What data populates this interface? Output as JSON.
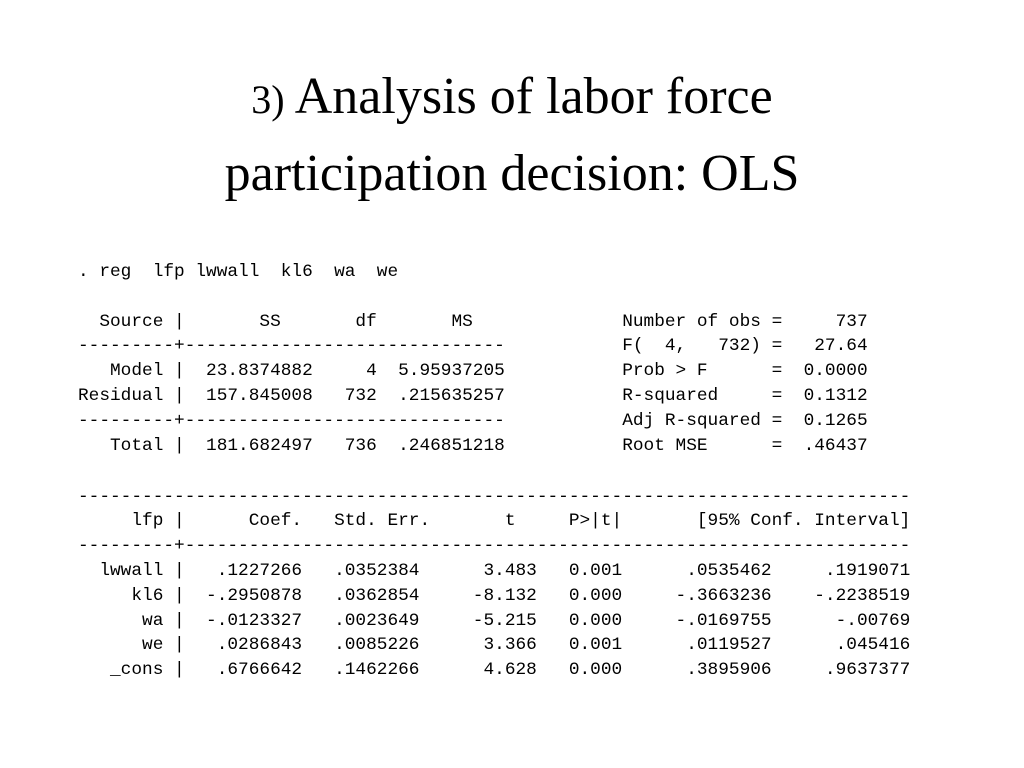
{
  "title": {
    "number": "3)",
    "lines": [
      "Analysis of labor force",
      "participation decision: OLS"
    ]
  },
  "command": ". reg  lfp lwwall  kl6  wa  we",
  "anova": [
    "  Source |       SS       df       MS              Number of obs =     737",
    "---------+------------------------------           F(  4,   732) =   27.64",
    "   Model |  23.8374882     4  5.95937205           Prob > F      =  0.0000",
    "Residual |  157.845008   732  .215635257           R-squared     =  0.1312",
    "---------+------------------------------           Adj R-squared =  0.1265",
    "   Total |  181.682497   736  .246851218           Root MSE      =  .46437"
  ],
  "coefficients": [
    "------------------------------------------------------------------------------",
    "     lfp |      Coef.   Std. Err.       t     P>|t|       [95% Conf. Interval]",
    "---------+--------------------------------------------------------------------",
    "  lwwall |   .1227266   .0352384      3.483   0.001      .0535462     .1919071",
    "     kl6 |  -.2950878   .0362854     -8.132   0.000     -.3663236    -.2238519",
    "      wa |  -.0123327   .0023649     -5.215   0.000     -.0169755      -.00769",
    "      we |   .0286843   .0085226      3.366   0.001      .0119527      .045416",
    "   _cons |   .6766642   .1462266      4.628   0.000      .3895906     .9637377"
  ]
}
